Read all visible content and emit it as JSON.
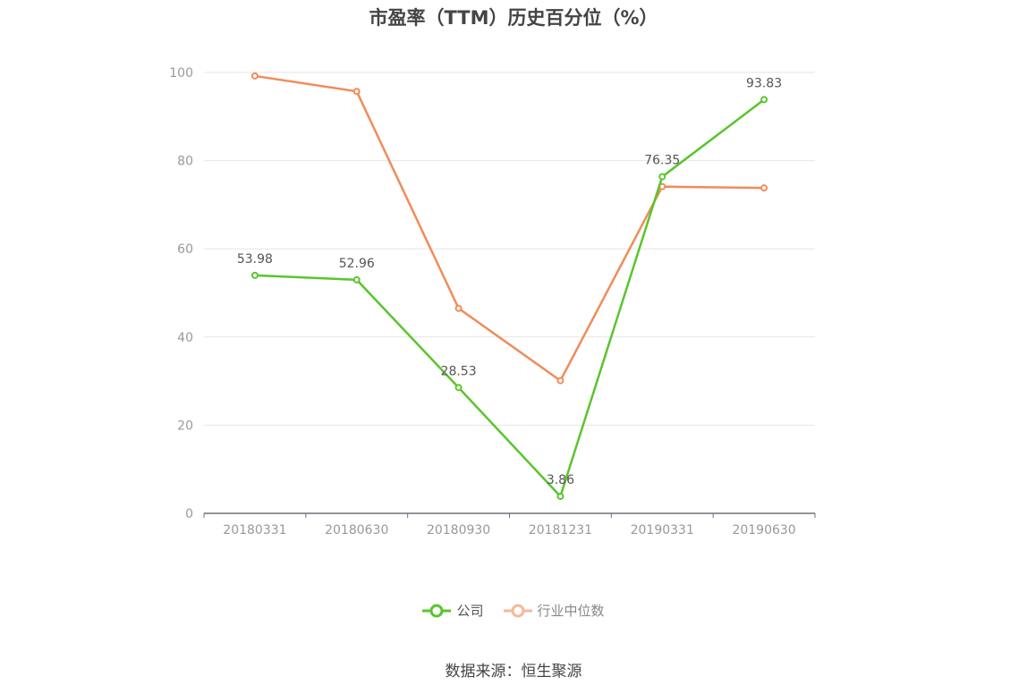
{
  "chart_data": {
    "type": "line",
    "title": "市盈率（TTM）历史百分位（%）",
    "categories": [
      "20180331",
      "20180630",
      "20180930",
      "20181231",
      "20190331",
      "20190630"
    ],
    "ylim": [
      0,
      100
    ],
    "yticks": [
      0,
      20,
      40,
      60,
      80,
      100
    ],
    "grid": true,
    "legend_position": "bottom",
    "series": [
      {
        "name": "公司",
        "color": "#5ac52d",
        "values": [
          53.98,
          52.96,
          28.53,
          3.86,
          76.35,
          93.83
        ],
        "labels": [
          "53.98",
          "52.96",
          "28.53",
          "3.86",
          "76.35",
          "93.83"
        ]
      },
      {
        "name": "行业中位数",
        "color": "#f08c5a",
        "values": [
          99.2,
          95.7,
          46.5,
          30.1,
          74.1,
          73.8
        ]
      }
    ]
  },
  "legend": {
    "company": "公司",
    "industry": "行业中位数",
    "industry_icon_color": "#f5b99b"
  },
  "source": "数据来源：恒生聚源"
}
